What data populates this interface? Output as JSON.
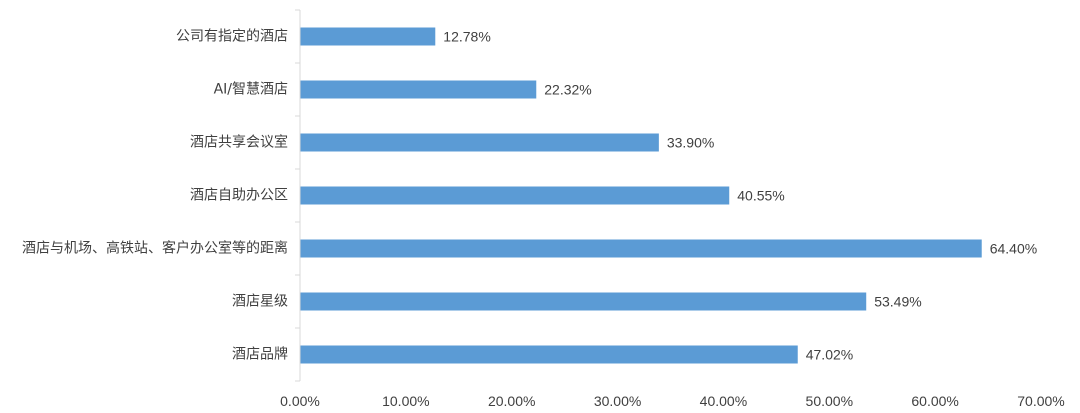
{
  "chart_data": {
    "type": "bar",
    "orientation": "horizontal",
    "title": "",
    "xlabel": "",
    "ylabel": "",
    "categories": [
      "公司有指定的酒店",
      "AI/智慧酒店",
      "酒店共享会议室",
      "酒店自助办公区",
      "酒店与机场、高铁站、客户办公室等的距离",
      "酒店星级",
      "酒店品牌"
    ],
    "values": [
      12.78,
      22.32,
      33.9,
      40.55,
      64.4,
      53.49,
      47.02
    ],
    "value_labels": [
      "12.78%",
      "22.32%",
      "33.90%",
      "40.55%",
      "64.40%",
      "53.49%",
      "47.02%"
    ],
    "xlim": [
      0,
      70
    ],
    "xticks": [
      0,
      10,
      20,
      30,
      40,
      50,
      60,
      70
    ],
    "xtick_labels": [
      "0.00%",
      "10.00%",
      "20.00%",
      "30.00%",
      "40.00%",
      "50.00%",
      "60.00%",
      "70.00%"
    ],
    "grid": false,
    "legend": "none",
    "colors": {
      "bar": "#5b9bd5",
      "axis": "#d9d9d9",
      "text": "#404040"
    }
  }
}
